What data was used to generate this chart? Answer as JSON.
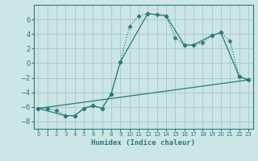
{
  "xlabel": "Humidex (Indice chaleur)",
  "background_color": "#cce5e5",
  "grid_color": "#aacccc",
  "line_color": "#2a7a7a",
  "xlim": [
    -0.5,
    23.5
  ],
  "ylim": [
    -9,
    8
  ],
  "yticks": [
    -8,
    -6,
    -4,
    -2,
    0,
    2,
    4,
    6
  ],
  "xticks": [
    0,
    1,
    2,
    3,
    4,
    5,
    6,
    7,
    8,
    9,
    10,
    11,
    12,
    13,
    14,
    15,
    16,
    17,
    18,
    19,
    20,
    21,
    22,
    23
  ],
  "line1_x": [
    0,
    1,
    2,
    3,
    4,
    5,
    6,
    7,
    8,
    9,
    10,
    11,
    12,
    13,
    14,
    15,
    16,
    17,
    18,
    19,
    20,
    21,
    22,
    23
  ],
  "line1_y": [
    -6.2,
    -6.2,
    -6.5,
    -7.2,
    -7.2,
    -6.2,
    -5.8,
    -6.2,
    -4.2,
    0.2,
    5.0,
    6.5,
    6.8,
    6.7,
    6.5,
    3.5,
    2.5,
    2.5,
    2.8,
    3.8,
    4.2,
    3.0,
    -1.8,
    -2.3
  ],
  "line2_x": [
    0,
    3,
    4,
    5,
    6,
    7,
    8,
    9,
    12,
    14,
    16,
    17,
    19,
    20,
    22,
    23
  ],
  "line2_y": [
    -6.2,
    -7.2,
    -7.2,
    -6.2,
    -5.8,
    -6.2,
    -4.2,
    0.2,
    6.8,
    6.5,
    2.5,
    2.5,
    3.8,
    4.2,
    -1.8,
    -2.3
  ],
  "line3_x": [
    0,
    23
  ],
  "line3_y": [
    -6.2,
    -2.3
  ]
}
